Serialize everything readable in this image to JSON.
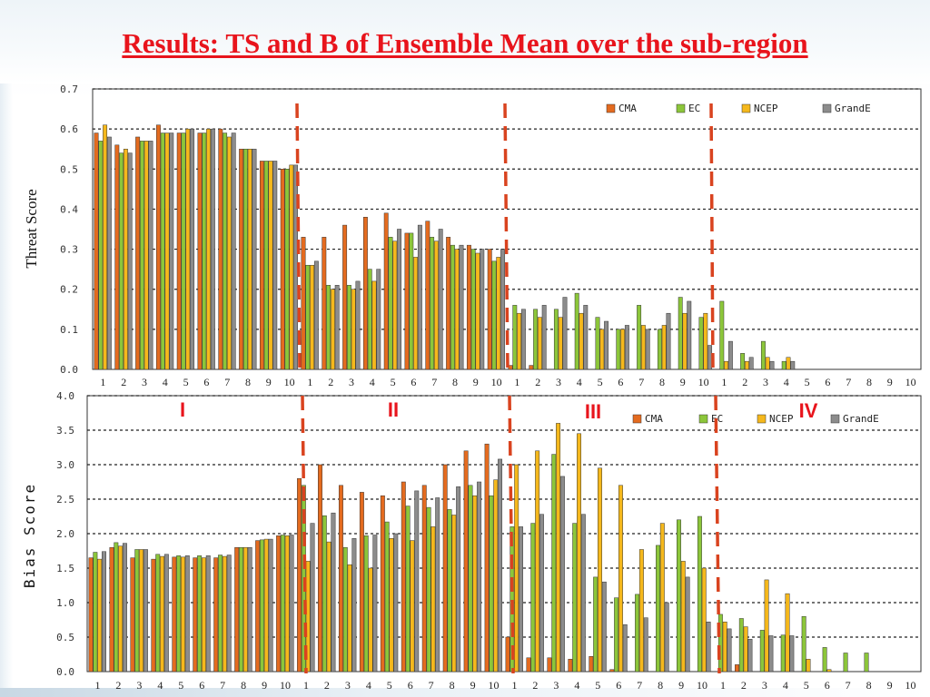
{
  "title": "Results: TS and B of Ensemble Mean over the sub-region",
  "colors": {
    "CMA": "#e46b1f",
    "EC": "#8cc63a",
    "NCEP": "#f5b81c",
    "GrandE": "#8c8c8c",
    "divider": "#d9431f",
    "region": "#e8141c"
  },
  "regions": [
    "I",
    "II",
    "III",
    "IV"
  ],
  "chart_data": [
    {
      "type": "bar",
      "ylabel": "Threat Score",
      "ylim": [
        0,
        0.7
      ],
      "yticks": [
        "0.0",
        "0.1",
        "0.2",
        "0.3",
        "0.4",
        "0.5",
        "0.6",
        "0.7"
      ],
      "categories": [
        "1",
        "2",
        "3",
        "4",
        "5",
        "6",
        "7",
        "8",
        "9",
        "10",
        "1",
        "2",
        "3",
        "4",
        "5",
        "6",
        "7",
        "8",
        "9",
        "10",
        "1",
        "2",
        "3",
        "4",
        "5",
        "6",
        "7",
        "8",
        "9",
        "10",
        "1",
        "2",
        "3",
        "4",
        "5",
        "6",
        "7",
        "8",
        "9",
        "10"
      ],
      "legend": "top-right",
      "grid": true,
      "series": [
        {
          "name": "CMA",
          "values": [
            0.59,
            0.56,
            0.58,
            0.61,
            0.59,
            0.59,
            0.6,
            0.55,
            0.52,
            0.5,
            0.33,
            0.33,
            0.36,
            0.38,
            0.39,
            0.34,
            0.37,
            0.33,
            0.31,
            0.3,
            0.01,
            0.01,
            0.0,
            0.0,
            0.0,
            0.0,
            0.0,
            0.0,
            0.0,
            0.0,
            0.0,
            0.0,
            0.0,
            0.0,
            0.0,
            0.0,
            0.0,
            0.0,
            0.0,
            0.0
          ]
        },
        {
          "name": "EC",
          "values": [
            0.57,
            0.54,
            0.57,
            0.59,
            0.59,
            0.59,
            0.59,
            0.55,
            0.52,
            0.5,
            0.26,
            0.21,
            0.21,
            0.25,
            0.33,
            0.34,
            0.33,
            0.31,
            0.3,
            0.27,
            0.16,
            0.15,
            0.15,
            0.19,
            0.13,
            0.1,
            0.16,
            0.1,
            0.18,
            0.13,
            0.17,
            0.04,
            0.07,
            0.02,
            0.0,
            0.0,
            0.0,
            0.0,
            0.0,
            0.0
          ]
        },
        {
          "name": "NCEP",
          "values": [
            0.61,
            0.55,
            0.57,
            0.59,
            0.6,
            0.6,
            0.58,
            0.55,
            0.52,
            0.51,
            0.26,
            0.2,
            0.2,
            0.22,
            0.32,
            0.28,
            0.32,
            0.3,
            0.29,
            0.28,
            0.14,
            0.13,
            0.13,
            0.14,
            0.1,
            0.1,
            0.11,
            0.11,
            0.14,
            0.14,
            0.02,
            0.02,
            0.03,
            0.03,
            0.0,
            0.0,
            0.0,
            0.0,
            0.0,
            0.0
          ]
        },
        {
          "name": "GrandE",
          "values": [
            0.58,
            0.54,
            0.57,
            0.59,
            0.6,
            0.6,
            0.59,
            0.55,
            0.52,
            0.51,
            0.27,
            0.21,
            0.22,
            0.25,
            0.35,
            0.36,
            0.35,
            0.31,
            0.3,
            0.3,
            0.15,
            0.16,
            0.18,
            0.16,
            0.12,
            0.11,
            0.1,
            0.14,
            0.17,
            0.06,
            0.07,
            0.03,
            0.02,
            0.02,
            0.0,
            0.0,
            0.0,
            0.0,
            0.0,
            0.0
          ]
        }
      ]
    },
    {
      "type": "bar",
      "ylabel": "Bias Score",
      "ylim": [
        0,
        4.0
      ],
      "yticks": [
        "0.0",
        "0.5",
        "1.0",
        "1.5",
        "2.0",
        "2.5",
        "3.0",
        "3.5",
        "4.0"
      ],
      "categories": [
        "1",
        "2",
        "3",
        "4",
        "5",
        "6",
        "7",
        "8",
        "9",
        "10",
        "1",
        "2",
        "3",
        "4",
        "5",
        "6",
        "7",
        "8",
        "9",
        "10",
        "1",
        "2",
        "3",
        "4",
        "5",
        "6",
        "7",
        "8",
        "9",
        "10",
        "1",
        "2",
        "3",
        "4",
        "5",
        "6",
        "7",
        "8",
        "9",
        "10"
      ],
      "legend": "top-right",
      "grid": true,
      "series": [
        {
          "name": "CMA",
          "values": [
            1.65,
            1.8,
            1.65,
            1.63,
            1.66,
            1.65,
            1.65,
            1.8,
            1.9,
            1.97,
            2.8,
            3.0,
            2.7,
            2.6,
            2.55,
            2.75,
            2.7,
            3.0,
            3.2,
            3.3,
            0.5,
            0.2,
            0.2,
            0.18,
            0.22,
            0.03,
            0.0,
            0.0,
            0.0,
            0.0,
            0.0,
            0.1,
            0.0,
            0.0,
            0.0,
            0.0,
            0.0,
            0.0,
            0.0,
            0.0
          ]
        },
        {
          "name": "EC",
          "values": [
            1.73,
            1.87,
            1.77,
            1.7,
            1.68,
            1.68,
            1.69,
            1.8,
            1.91,
            1.98,
            2.7,
            2.26,
            1.8,
            1.97,
            2.17,
            2.4,
            2.38,
            2.35,
            2.7,
            2.55,
            2.1,
            2.15,
            3.15,
            2.15,
            1.37,
            1.07,
            1.12,
            1.83,
            2.2,
            2.25,
            0.83,
            0.77,
            0.6,
            0.53,
            0.8,
            0.35,
            0.27,
            0.27,
            0.0,
            0.0
          ]
        },
        {
          "name": "NCEP",
          "values": [
            1.63,
            1.82,
            1.77,
            1.67,
            1.66,
            1.65,
            1.67,
            1.8,
            1.92,
            1.97,
            1.6,
            1.88,
            1.55,
            1.5,
            1.93,
            1.9,
            2.1,
            2.27,
            2.55,
            2.78,
            3.0,
            3.2,
            3.6,
            3.45,
            2.95,
            2.7,
            1.77,
            2.15,
            1.6,
            1.5,
            0.72,
            0.65,
            1.33,
            1.13,
            0.18,
            0.03,
            0.0,
            0.0,
            0.0,
            0.0
          ]
        },
        {
          "name": "GrandE",
          "values": [
            1.74,
            1.86,
            1.77,
            1.7,
            1.68,
            1.68,
            1.69,
            1.8,
            1.92,
            1.98,
            2.15,
            2.3,
            1.93,
            1.98,
            2.0,
            2.62,
            2.52,
            2.68,
            2.75,
            3.08,
            2.1,
            2.28,
            2.83,
            2.28,
            1.3,
            0.68,
            0.78,
            1.0,
            1.37,
            0.72,
            0.62,
            0.47,
            0.52,
            0.52,
            0.0,
            0.0,
            0.0,
            0.0,
            0.0,
            0.0
          ]
        }
      ]
    }
  ]
}
